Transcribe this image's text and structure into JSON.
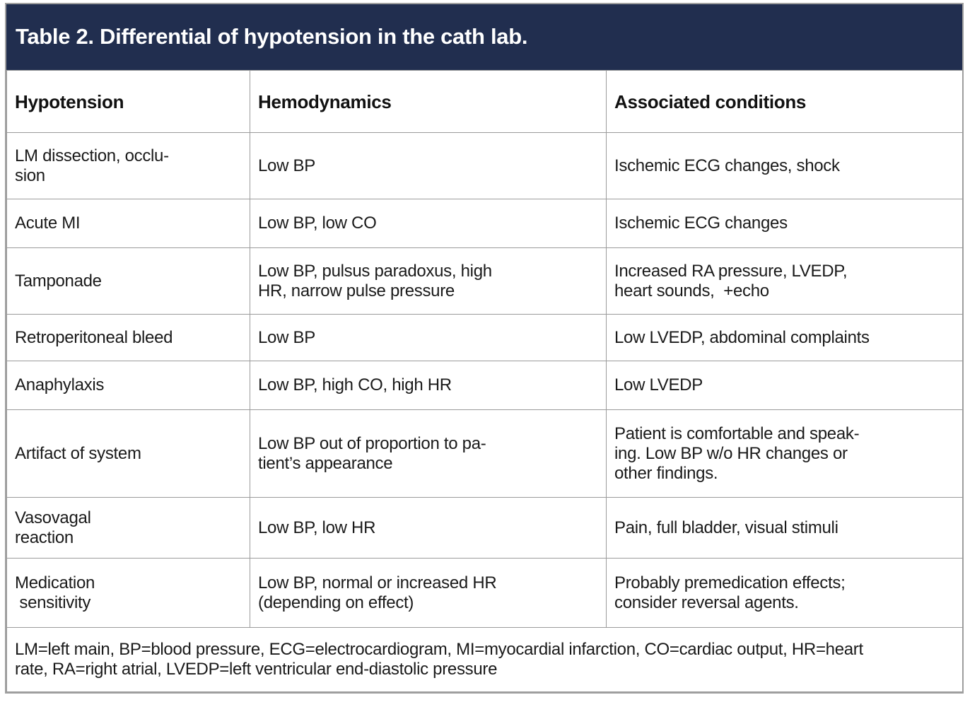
{
  "colors": {
    "title_bar_background": "#212e4f",
    "title_text": "#ffffff",
    "grid_border": "#9b9b9b",
    "body_text": "#1a1a1a"
  },
  "title_bar": {
    "title": "Table 2. Differential of hypotension in the cath lab."
  },
  "table": {
    "headers": [
      "Hypotension",
      "Hemodynamics",
      "Associated conditions"
    ],
    "rows": [
      {
        "cells": [
          "LM dissection, occlu-\nsion",
          "Low BP",
          "Ischemic ECG changes, shock"
        ]
      },
      {
        "cells": [
          "Acute MI",
          "Low BP, low CO",
          "Ischemic ECG changes"
        ]
      },
      {
        "cells": [
          "Tamponade",
          "Low BP, pulsus paradoxus, high\nHR, narrow pulse pressure",
          "Increased RA pressure, LVEDP,\nheart sounds,  +echo"
        ]
      },
      {
        "cells": [
          "Retroperitoneal bleed",
          "Low BP",
          "Low LVEDP, abdominal complaints"
        ]
      },
      {
        "cells": [
          "Anaphylaxis",
          "Low BP, high CO, high HR",
          "Low LVEDP"
        ]
      },
      {
        "cells": [
          "Artifact of system",
          "Low BP out of proportion to pa-\ntient’s appearance",
          "Patient is comfortable and speak-\ning. Low BP w/o HR changes or\nother findings."
        ]
      },
      {
        "cells": [
          "Vasovagal\nreaction",
          "Low BP, low HR",
          "Pain, full bladder, visual stimuli"
        ]
      },
      {
        "cells": [
          "Medication\n sensitivity",
          "Low BP, normal or increased HR\n(depending on effect)",
          "Probably premedication effects;\nconsider reversal agents."
        ]
      }
    ],
    "footnote": "LM=left main, BP=blood pressure, ECG=electrocardiogram, MI=myocardial infarction, CO=cardiac output, HR=heart\nrate, RA=right atrial, LVEDP=left ventricular end-diastolic pressure"
  }
}
